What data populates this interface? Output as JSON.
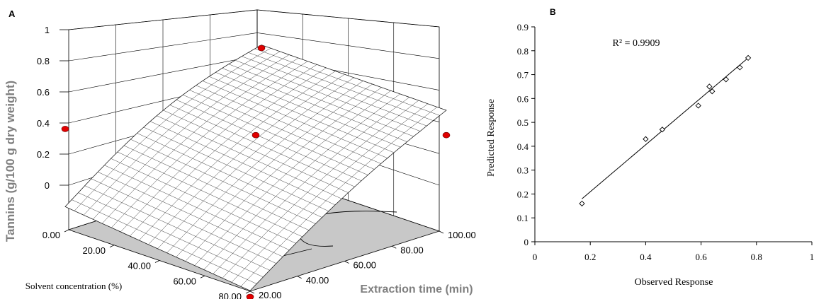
{
  "chart_data": [
    {
      "panel_label": "A",
      "type": "surface3d",
      "zlabel": "Tannins (g/100 g dry weight)",
      "xlabel": "Extraction time (min)",
      "ylabel": "Solvent concentration (%)",
      "z_ticks": [
        "1",
        "0.8",
        "0.6",
        "0.4",
        "0.2",
        "0"
      ],
      "x_ticks": [
        "20.00",
        "40.00",
        "60.00",
        "80.00",
        "100.00"
      ],
      "y_ticks": [
        "0.00",
        "20.00",
        "40.00",
        "60.00",
        "80.00"
      ],
      "zlim": [
        0,
        1
      ],
      "xlim": [
        20,
        100
      ],
      "ylim": [
        0,
        80
      ],
      "grid": true,
      "surface_z_at_corners": {
        "time_20_solvent_0": 0.18,
        "time_100_solvent_0": 0.82,
        "time_20_solvent_80": 0.04,
        "time_100_solvent_80": 0.8
      },
      "points": [
        {
          "time": 20,
          "solvent": 0,
          "tannins": 0.68
        },
        {
          "time": 100,
          "solvent": 0,
          "tannins": 0.8
        },
        {
          "time": 60,
          "solvent": 40,
          "tannins": 0.64
        },
        {
          "time": 100,
          "solvent": 80,
          "tannins": 0.64
        },
        {
          "time": 20,
          "solvent": 80,
          "tannins": 0.0
        }
      ]
    },
    {
      "panel_label": "B",
      "type": "scatter",
      "xlabel": "Observed Response",
      "ylabel": "Predicted Response",
      "annotation": "R² = 0.9909",
      "xlim": [
        0,
        1
      ],
      "ylim": [
        0,
        0.9
      ],
      "x_ticks": [
        "0",
        "0.2",
        "0.4",
        "0.6",
        "0.8",
        "1"
      ],
      "y_ticks": [
        "0",
        "0.1",
        "0.2",
        "0.3",
        "0.4",
        "0.5",
        "0.6",
        "0.7",
        "0.8",
        "0.9"
      ],
      "points": [
        {
          "x": 0.17,
          "y": 0.16
        },
        {
          "x": 0.4,
          "y": 0.43
        },
        {
          "x": 0.46,
          "y": 0.47
        },
        {
          "x": 0.59,
          "y": 0.57
        },
        {
          "x": 0.63,
          "y": 0.65
        },
        {
          "x": 0.64,
          "y": 0.63
        },
        {
          "x": 0.69,
          "y": 0.68
        },
        {
          "x": 0.74,
          "y": 0.73
        },
        {
          "x": 0.77,
          "y": 0.77
        }
      ],
      "fit_line": {
        "x": [
          0.17,
          0.77
        ],
        "y": [
          0.18,
          0.77
        ]
      }
    }
  ]
}
